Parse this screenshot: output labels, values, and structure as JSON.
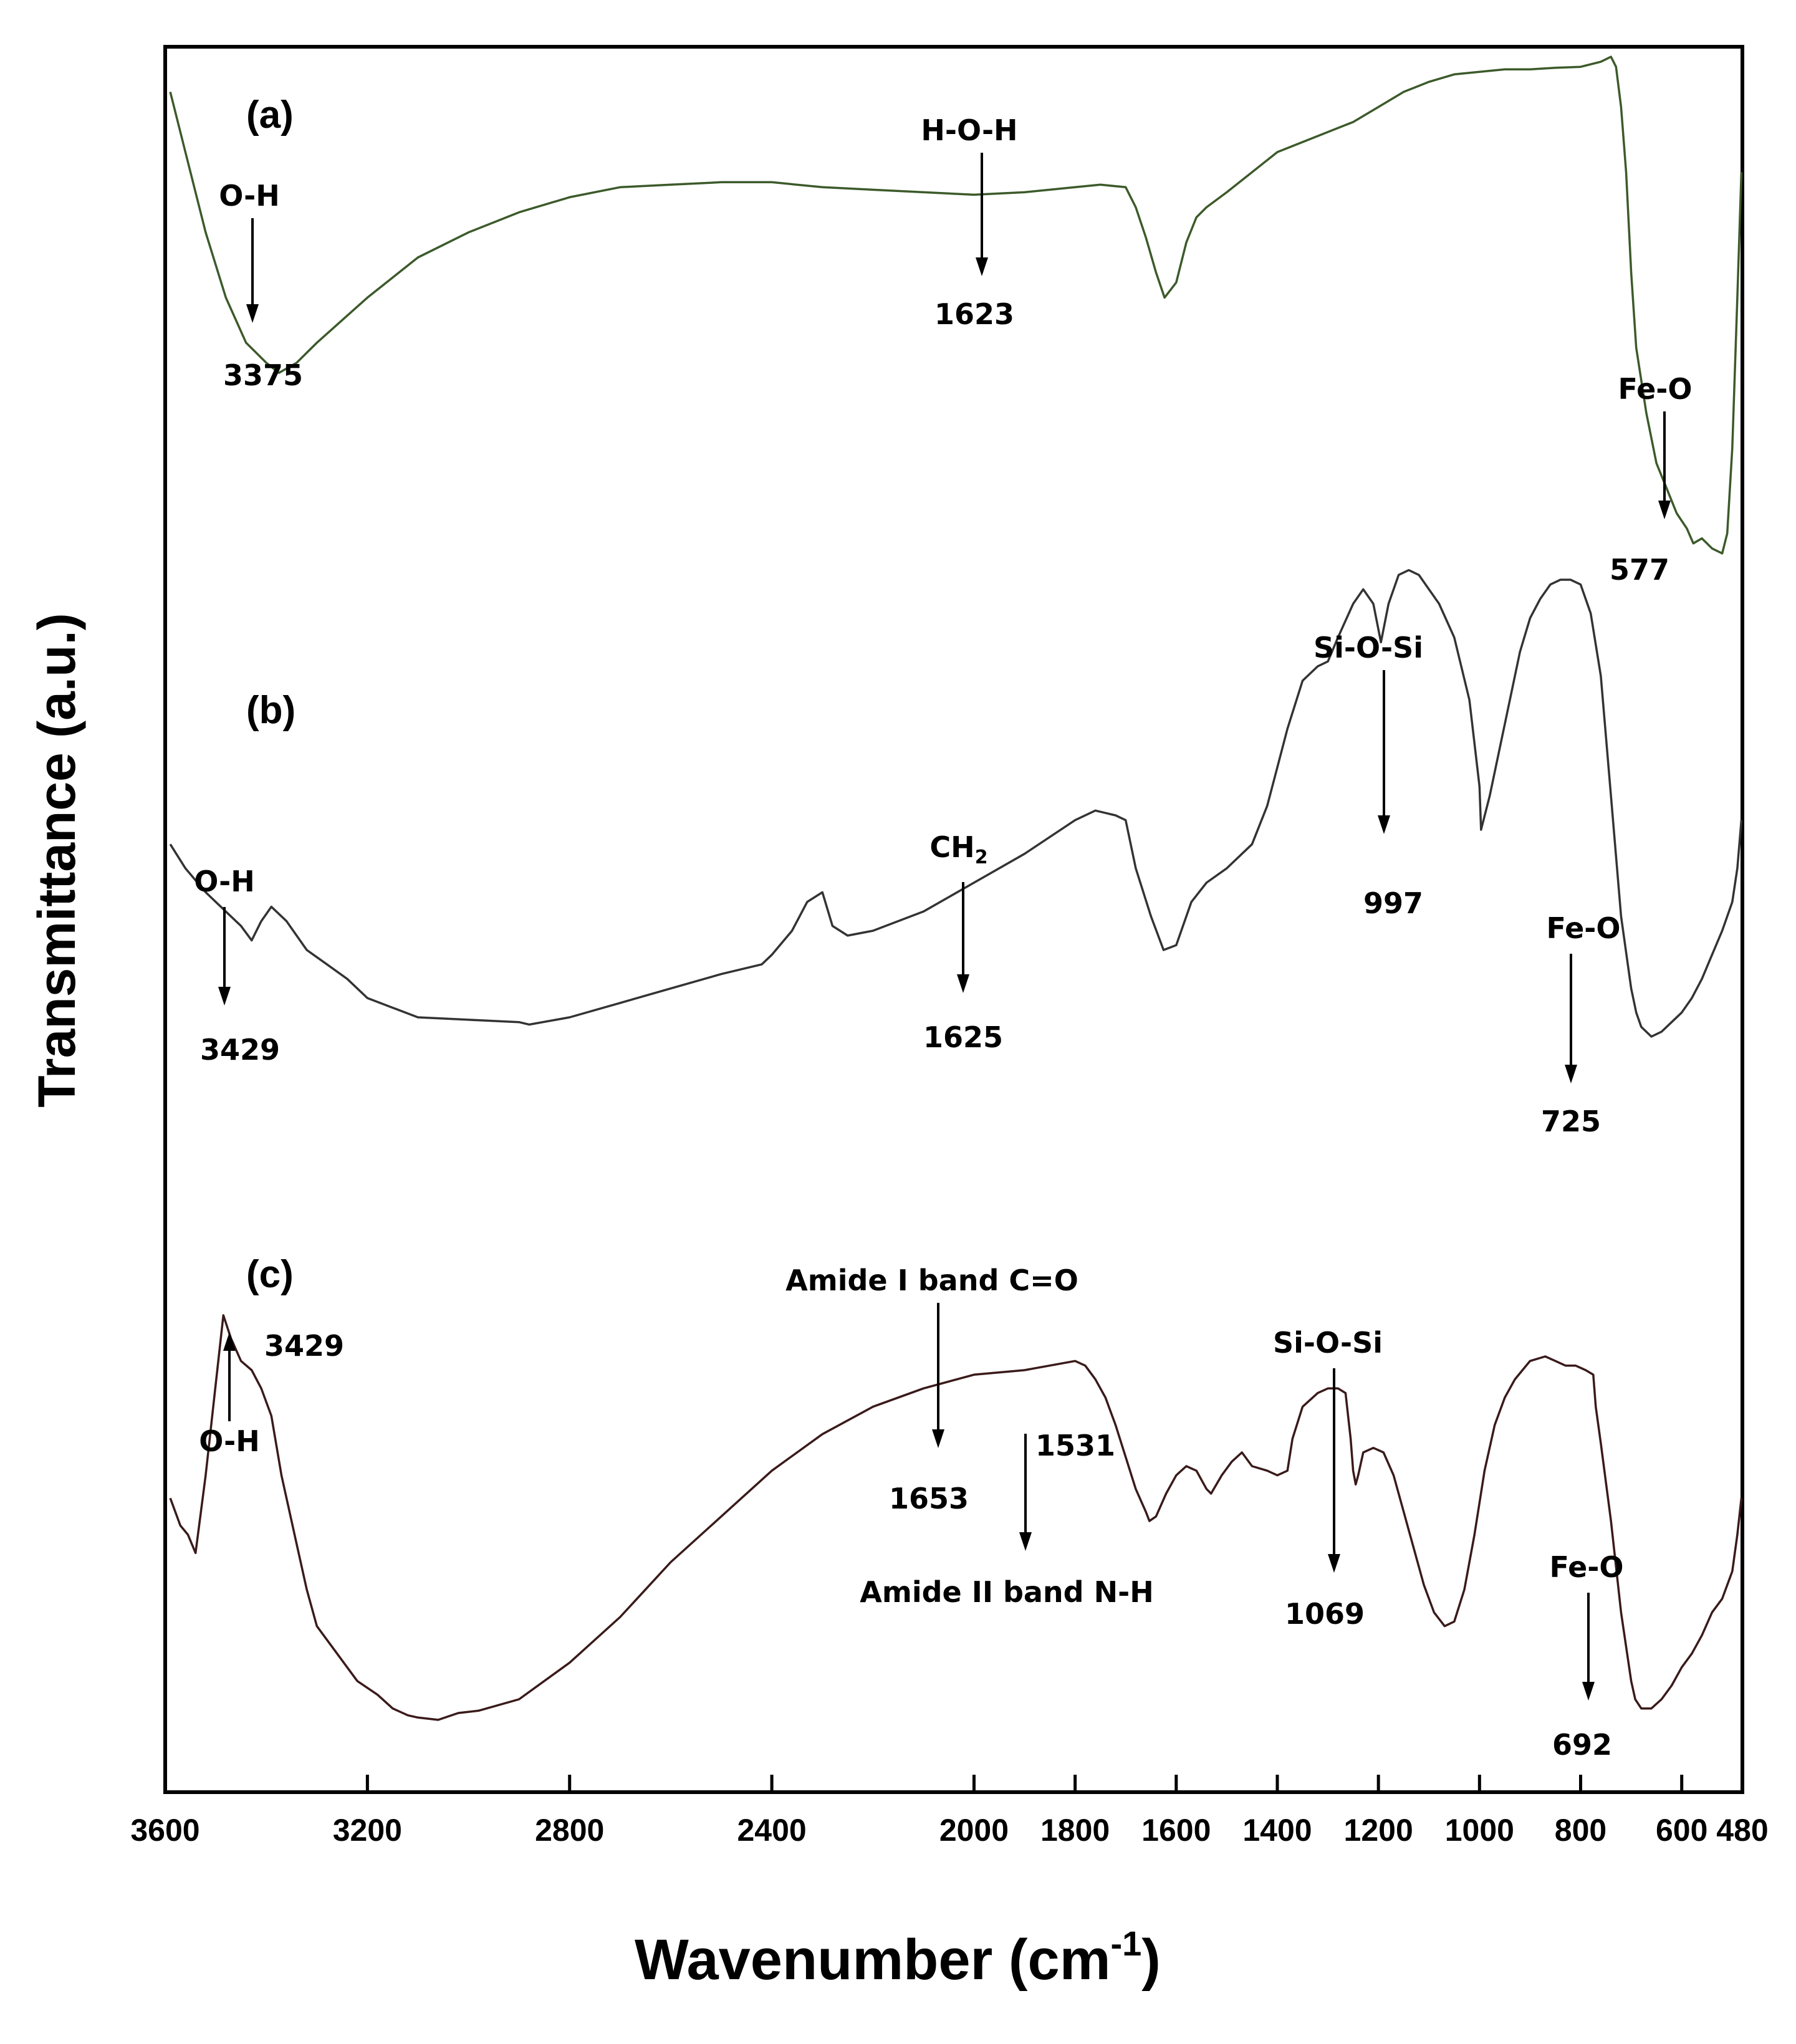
{
  "chart_data": {
    "type": "line",
    "title": "",
    "xlabel": "Wavenumber (cm",
    "xlabel_sup": "-1",
    "xlabel_close": ")",
    "ylabel": "Transmittance (a.u.)",
    "xlim": [
      3600,
      480
    ],
    "x_reversed": true,
    "x_ticks": [
      3600,
      3200,
      2800,
      2400,
      2000,
      1800,
      1600,
      1400,
      1200,
      1000,
      800,
      600,
      480
    ],
    "grid": false,
    "series": [
      {
        "name": "(a)",
        "color": "#3c5a2a",
        "x": [
          3590,
          3560,
          3520,
          3480,
          3440,
          3400,
          3375,
          3340,
          3300,
          3200,
          3100,
          3000,
          2900,
          2800,
          2700,
          2600,
          2500,
          2400,
          2300,
          2200,
          2100,
          2000,
          1900,
          1800,
          1750,
          1700,
          1680,
          1660,
          1640,
          1623,
          1600,
          1580,
          1560,
          1540,
          1500,
          1450,
          1400,
          1350,
          1300,
          1250,
          1200,
          1150,
          1100,
          1050,
          1000,
          950,
          900,
          850,
          800,
          760,
          740,
          730,
          720,
          710,
          700,
          690,
          670,
          650,
          630,
          610,
          590,
          577,
          560,
          540,
          520,
          510,
          500,
          490,
          482
        ],
        "y": [
          96,
          84,
          68,
          55,
          46,
          42,
          40,
          42,
          46,
          55,
          63,
          68,
          72,
          75,
          77,
          77.5,
          78,
          78,
          77,
          76.5,
          76,
          75.5,
          76,
          77,
          77.5,
          77,
          73,
          67,
          60,
          55,
          58,
          66,
          71,
          73,
          76,
          80,
          84,
          86,
          88,
          90,
          93,
          96,
          98,
          99.5,
          100,
          100.5,
          100.5,
          100.8,
          101,
          102,
          103,
          101,
          93,
          80,
          60,
          45,
          32,
          22,
          17,
          12,
          9,
          6,
          7,
          5,
          4,
          8,
          25,
          55,
          80
        ]
      },
      {
        "name": "(b)",
        "color": "#333333",
        "x": [
          3590,
          3560,
          3520,
          3480,
          3450,
          3429,
          3410,
          3390,
          3360,
          3320,
          3280,
          3240,
          3200,
          3150,
          3100,
          3000,
          2900,
          2880,
          2800,
          2700,
          2600,
          2500,
          2420,
          2400,
          2360,
          2330,
          2300,
          2280,
          2250,
          2200,
          2100,
          2000,
          1900,
          1800,
          1760,
          1720,
          1700,
          1680,
          1650,
          1625,
          1600,
          1570,
          1540,
          1500,
          1450,
          1420,
          1400,
          1380,
          1350,
          1320,
          1300,
          1280,
          1250,
          1230,
          1210,
          1195,
          1180,
          1160,
          1140,
          1120,
          1100,
          1080,
          1050,
          1020,
          1000,
          997,
          980,
          960,
          940,
          920,
          900,
          880,
          860,
          840,
          820,
          800,
          780,
          760,
          740,
          720,
          700,
          690,
          680,
          660,
          640,
          620,
          600,
          580,
          560,
          540,
          520,
          500,
          490,
          482
        ],
        "y": [
          50,
          45,
          40,
          36,
          33,
          30,
          34,
          37,
          34,
          28,
          25,
          22,
          18,
          16,
          14,
          13.5,
          13,
          12.5,
          14,
          17,
          20,
          23,
          25,
          27,
          32,
          38,
          40,
          33,
          31,
          32,
          36,
          42,
          48,
          55,
          57,
          56,
          55,
          45,
          35,
          28,
          29,
          38,
          42,
          45,
          50,
          58,
          66,
          74,
          84,
          87,
          88,
          93,
          100,
          103,
          100,
          92,
          100,
          106,
          107,
          106,
          103,
          100,
          93,
          80,
          62,
          53,
          60,
          70,
          80,
          90,
          97,
          101,
          104,
          105,
          105,
          104,
          98,
          85,
          60,
          35,
          20,
          15,
          12,
          10,
          11,
          13,
          15,
          18,
          22,
          27,
          32,
          38,
          45,
          55
        ]
      },
      {
        "name": "(c)",
        "color": "#3a1a1a",
        "x": [
          3590,
          3570,
          3555,
          3540,
          3520,
          3500,
          3485,
          3470,
          3450,
          3429,
          3410,
          3390,
          3370,
          3340,
          3320,
          3300,
          3260,
          3220,
          3180,
          3150,
          3120,
          3100,
          3060,
          3020,
          2980,
          2900,
          2800,
          2700,
          2600,
          2500,
          2400,
          2300,
          2200,
          2100,
          2000,
          1900,
          1800,
          1780,
          1760,
          1740,
          1720,
          1700,
          1680,
          1660,
          1653,
          1640,
          1620,
          1600,
          1580,
          1560,
          1540,
          1531,
          1510,
          1490,
          1470,
          1450,
          1420,
          1400,
          1380,
          1370,
          1350,
          1320,
          1300,
          1280,
          1265,
          1255,
          1250,
          1245,
          1240,
          1230,
          1210,
          1190,
          1170,
          1150,
          1130,
          1110,
          1090,
          1069,
          1050,
          1030,
          1010,
          990,
          970,
          950,
          930,
          900,
          870,
          850,
          830,
          810,
          790,
          775,
          770,
          760,
          740,
          720,
          700,
          692,
          680,
          660,
          640,
          620,
          600,
          580,
          560,
          540,
          520,
          500,
          490,
          482
        ],
        "y": [
          50,
          44,
          42,
          38,
          55,
          75,
          90,
          85,
          80,
          78,
          74,
          68,
          55,
          40,
          30,
          22,
          16,
          10,
          7,
          4,
          2.5,
          2,
          1.5,
          3,
          3.5,
          6,
          14,
          24,
          36,
          46,
          56,
          64,
          70,
          74,
          77,
          78,
          80,
          79,
          76,
          72,
          66,
          59,
          52,
          47,
          45,
          46,
          51,
          55,
          57,
          56,
          52,
          51,
          55,
          58,
          60,
          57,
          56,
          55,
          56,
          63,
          70,
          73,
          74,
          74,
          73,
          63,
          56,
          53,
          55,
          60,
          61,
          60,
          55,
          47,
          39,
          31,
          25,
          22,
          23,
          30,
          42,
          56,
          66,
          72,
          76,
          80,
          81,
          80,
          79,
          79,
          78,
          77,
          70,
          62,
          45,
          25,
          10,
          6,
          4,
          4,
          6,
          9,
          13,
          16,
          20,
          25,
          28,
          34,
          42,
          50
        ]
      }
    ],
    "panels": [
      "(a)",
      "(b)",
      "(c)"
    ],
    "annotations": [
      {
        "series": "(a)",
        "label": "O-H",
        "x": 3375,
        "value": "3375",
        "arrow": "down"
      },
      {
        "series": "(a)",
        "label": "H-O-H",
        "x": 1623,
        "value": "1623",
        "arrow": "down"
      },
      {
        "series": "(a)",
        "label": "Fe-O",
        "x": 577,
        "value": "577",
        "arrow": "down"
      },
      {
        "series": "(b)",
        "label": "O-H",
        "x": 3429,
        "value": "3429",
        "arrow": "down"
      },
      {
        "series": "(b)",
        "label": "CH",
        "label_sub": "2",
        "x": 1625,
        "value": "1625",
        "arrow": "down"
      },
      {
        "series": "(b)",
        "label": "Si-O-Si",
        "x": 997,
        "value": "997",
        "arrow": "down"
      },
      {
        "series": "(b)",
        "label": "Fe-O",
        "x": 725,
        "value": "725",
        "arrow": "down"
      },
      {
        "series": "(c)",
        "label": "O-H",
        "x": 3429,
        "value": "3429",
        "arrow": "up"
      },
      {
        "series": "(c)",
        "label": "Amide I band C=O",
        "x": 1653,
        "value": "1653",
        "arrow": "down"
      },
      {
        "series": "(c)",
        "label": "Amide II band N-H",
        "x": 1531,
        "value": "1531",
        "arrow": "down"
      },
      {
        "series": "(c)",
        "label": "Si-O-Si",
        "x": 1069,
        "value": "1069",
        "arrow": "down"
      },
      {
        "series": "(c)",
        "label": "Fe-O",
        "x": 692,
        "value": "692",
        "arrow": "down"
      }
    ]
  }
}
